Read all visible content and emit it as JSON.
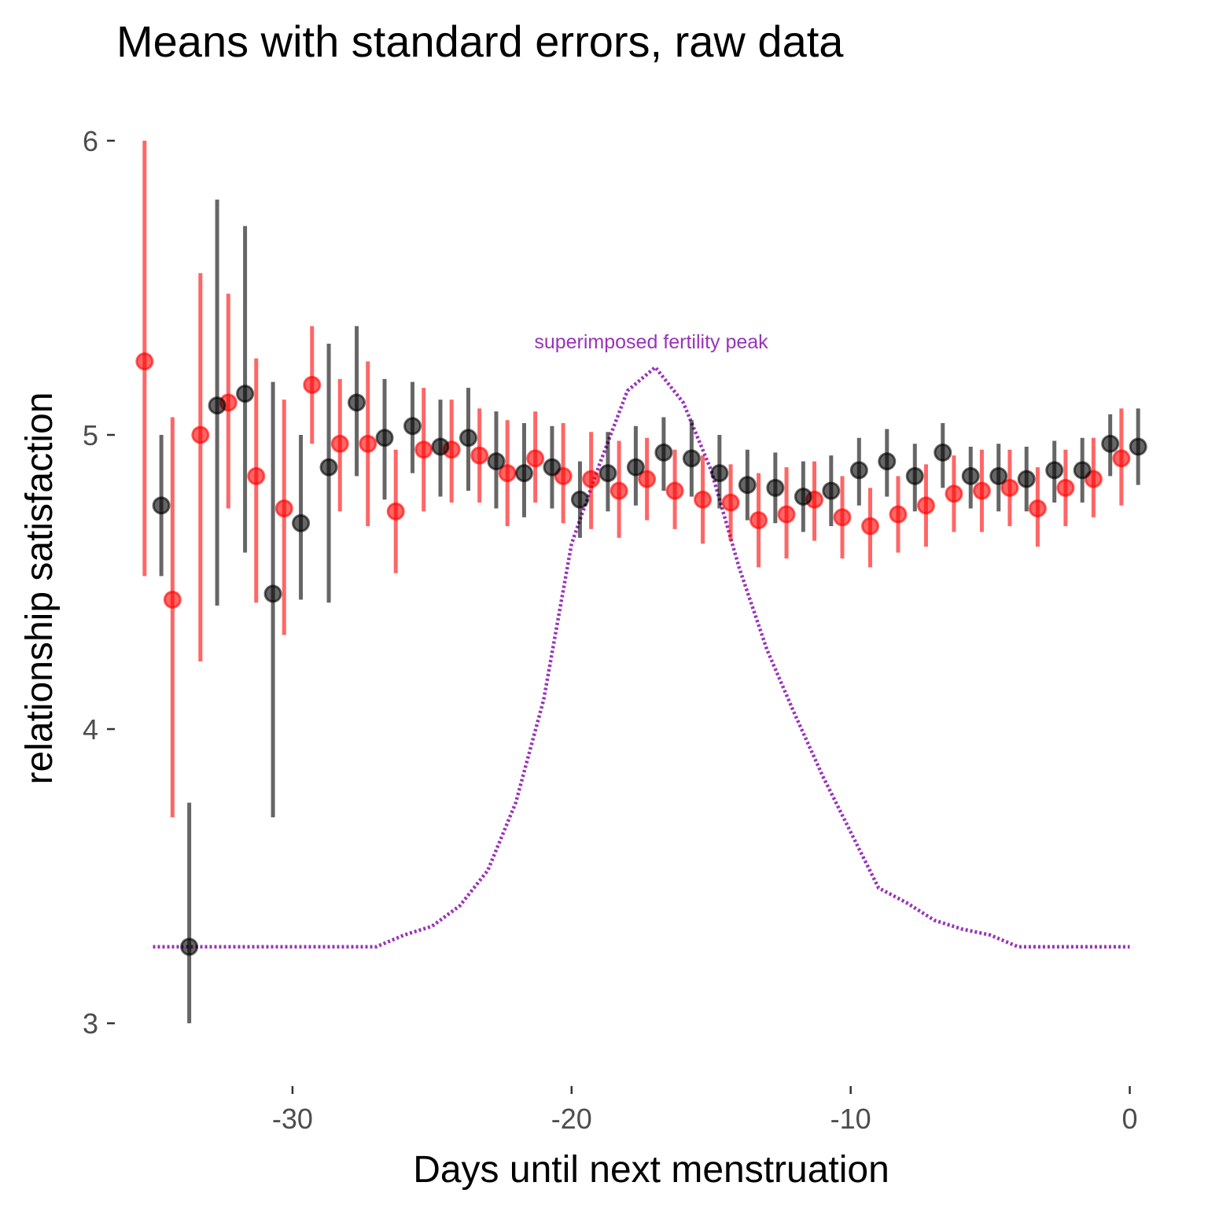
{
  "chart_data": {
    "type": "scatter",
    "title": "Means with standard errors, raw data",
    "xlabel": "Days until next menstruation",
    "ylabel": "relationship satisfaction",
    "xlim": [
      -36,
      1
    ],
    "ylim": [
      2.88,
      6.08
    ],
    "x_ticks": [
      -30,
      -20,
      -10,
      0
    ],
    "x_tick_labels": [
      "-30",
      "-20",
      "-10",
      "0"
    ],
    "y_ticks": [
      3,
      4,
      5,
      6
    ],
    "y_tick_labels": [
      "3",
      "4",
      "5",
      "6"
    ],
    "grid": false,
    "legend": "none",
    "series": [
      {
        "color": "#ff0000",
        "x_offset": -0.3,
        "points": [
          {
            "x": -35,
            "y": 5.25,
            "lo": 4.52,
            "hi": 6.0
          },
          {
            "x": -34,
            "y": 4.44,
            "lo": 3.7,
            "hi": 5.06
          },
          {
            "x": -33,
            "y": 5.0,
            "lo": 4.23,
            "hi": 5.55
          },
          {
            "x": -32,
            "y": 5.11,
            "lo": 4.75,
            "hi": 5.48
          },
          {
            "x": -31,
            "y": 4.86,
            "lo": 4.43,
            "hi": 5.26
          },
          {
            "x": -30,
            "y": 4.75,
            "lo": 4.32,
            "hi": 5.12
          },
          {
            "x": -29,
            "y": 5.17,
            "lo": 4.97,
            "hi": 5.37
          },
          {
            "x": -28,
            "y": 4.97,
            "lo": 4.74,
            "hi": 5.19
          },
          {
            "x": -27,
            "y": 4.97,
            "lo": 4.69,
            "hi": 5.25
          },
          {
            "x": -26,
            "y": 4.74,
            "lo": 4.53,
            "hi": 4.95
          },
          {
            "x": -25,
            "y": 4.95,
            "lo": 4.74,
            "hi": 5.16
          },
          {
            "x": -24,
            "y": 4.95,
            "lo": 4.77,
            "hi": 5.12
          },
          {
            "x": -23,
            "y": 4.93,
            "lo": 4.77,
            "hi": 5.09
          },
          {
            "x": -22,
            "y": 4.87,
            "lo": 4.69,
            "hi": 5.05
          },
          {
            "x": -21,
            "y": 4.92,
            "lo": 4.77,
            "hi": 5.08
          },
          {
            "x": -20,
            "y": 4.86,
            "lo": 4.7,
            "hi": 5.04
          },
          {
            "x": -19,
            "y": 4.85,
            "lo": 4.68,
            "hi": 5.01
          },
          {
            "x": -18,
            "y": 4.81,
            "lo": 4.65,
            "hi": 4.98
          },
          {
            "x": -17,
            "y": 4.85,
            "lo": 4.71,
            "hi": 4.99
          },
          {
            "x": -16,
            "y": 4.81,
            "lo": 4.68,
            "hi": 4.95
          },
          {
            "x": -15,
            "y": 4.78,
            "lo": 4.63,
            "hi": 4.93
          },
          {
            "x": -14,
            "y": 4.77,
            "lo": 4.64,
            "hi": 4.9
          },
          {
            "x": -13,
            "y": 4.71,
            "lo": 4.55,
            "hi": 4.87
          },
          {
            "x": -12,
            "y": 4.73,
            "lo": 4.58,
            "hi": 4.89
          },
          {
            "x": -11,
            "y": 4.78,
            "lo": 4.64,
            "hi": 4.91
          },
          {
            "x": -10,
            "y": 4.72,
            "lo": 4.58,
            "hi": 4.86
          },
          {
            "x": -9,
            "y": 4.69,
            "lo": 4.55,
            "hi": 4.82
          },
          {
            "x": -8,
            "y": 4.73,
            "lo": 4.6,
            "hi": 4.86
          },
          {
            "x": -7,
            "y": 4.76,
            "lo": 4.62,
            "hi": 4.9
          },
          {
            "x": -6,
            "y": 4.8,
            "lo": 4.67,
            "hi": 4.93
          },
          {
            "x": -5,
            "y": 4.81,
            "lo": 4.67,
            "hi": 4.95
          },
          {
            "x": -4,
            "y": 4.82,
            "lo": 4.69,
            "hi": 4.95
          },
          {
            "x": -3,
            "y": 4.75,
            "lo": 4.62,
            "hi": 4.89
          },
          {
            "x": -2,
            "y": 4.82,
            "lo": 4.69,
            "hi": 4.95
          },
          {
            "x": -1,
            "y": 4.85,
            "lo": 4.72,
            "hi": 4.99
          },
          {
            "x": 0,
            "y": 4.92,
            "lo": 4.76,
            "hi": 5.09
          }
        ]
      },
      {
        "color": "#000000",
        "x_offset": 0.3,
        "points": [
          {
            "x": -35,
            "y": 4.76,
            "lo": 4.52,
            "hi": 5.0
          },
          {
            "x": -34,
            "y": 3.26,
            "lo": 3.0,
            "hi": 3.75
          },
          {
            "x": -33,
            "y": 5.1,
            "lo": 4.42,
            "hi": 5.8
          },
          {
            "x": -32,
            "y": 5.14,
            "lo": 4.6,
            "hi": 5.71
          },
          {
            "x": -31,
            "y": 4.46,
            "lo": 3.7,
            "hi": 5.18
          },
          {
            "x": -30,
            "y": 4.7,
            "lo": 4.44,
            "hi": 5.0
          },
          {
            "x": -29,
            "y": 4.89,
            "lo": 4.43,
            "hi": 5.31
          },
          {
            "x": -28,
            "y": 5.11,
            "lo": 4.86,
            "hi": 5.37
          },
          {
            "x": -27,
            "y": 4.99,
            "lo": 4.78,
            "hi": 5.19
          },
          {
            "x": -26,
            "y": 5.03,
            "lo": 4.87,
            "hi": 5.18
          },
          {
            "x": -25,
            "y": 4.96,
            "lo": 4.79,
            "hi": 5.12
          },
          {
            "x": -24,
            "y": 4.99,
            "lo": 4.81,
            "hi": 5.16
          },
          {
            "x": -23,
            "y": 4.91,
            "lo": 4.75,
            "hi": 5.08
          },
          {
            "x": -22,
            "y": 4.87,
            "lo": 4.72,
            "hi": 5.04
          },
          {
            "x": -21,
            "y": 4.89,
            "lo": 4.75,
            "hi": 5.03
          },
          {
            "x": -20,
            "y": 4.78,
            "lo": 4.65,
            "hi": 4.91
          },
          {
            "x": -19,
            "y": 4.87,
            "lo": 4.74,
            "hi": 5.01
          },
          {
            "x": -18,
            "y": 4.89,
            "lo": 4.76,
            "hi": 5.03
          },
          {
            "x": -17,
            "y": 4.94,
            "lo": 4.81,
            "hi": 5.06
          },
          {
            "x": -16,
            "y": 4.92,
            "lo": 4.79,
            "hi": 5.05
          },
          {
            "x": -15,
            "y": 4.87,
            "lo": 4.75,
            "hi": 5.0
          },
          {
            "x": -14,
            "y": 4.83,
            "lo": 4.71,
            "hi": 4.95
          },
          {
            "x": -13,
            "y": 4.82,
            "lo": 4.7,
            "hi": 4.94
          },
          {
            "x": -12,
            "y": 4.79,
            "lo": 4.67,
            "hi": 4.91
          },
          {
            "x": -11,
            "y": 4.81,
            "lo": 4.69,
            "hi": 4.93
          },
          {
            "x": -10,
            "y": 4.88,
            "lo": 4.76,
            "hi": 4.99
          },
          {
            "x": -9,
            "y": 4.91,
            "lo": 4.79,
            "hi": 5.02
          },
          {
            "x": -8,
            "y": 4.86,
            "lo": 4.74,
            "hi": 4.97
          },
          {
            "x": -7,
            "y": 4.94,
            "lo": 4.82,
            "hi": 5.04
          },
          {
            "x": -6,
            "y": 4.86,
            "lo": 4.75,
            "hi": 4.96
          },
          {
            "x": -5,
            "y": 4.86,
            "lo": 4.74,
            "hi": 4.97
          },
          {
            "x": -4,
            "y": 4.85,
            "lo": 4.74,
            "hi": 4.96
          },
          {
            "x": -3,
            "y": 4.88,
            "lo": 4.77,
            "hi": 4.98
          },
          {
            "x": -2,
            "y": 4.88,
            "lo": 4.77,
            "hi": 4.99
          },
          {
            "x": -1,
            "y": 4.97,
            "lo": 4.86,
            "hi": 5.07
          },
          {
            "x": 0,
            "y": 4.96,
            "lo": 4.83,
            "hi": 5.09
          }
        ]
      }
    ],
    "fertility_curve": {
      "color": "#9933bb",
      "style": "dotted",
      "label": "superimposed fertility peak",
      "points": [
        {
          "x": -35,
          "y": 3.26
        },
        {
          "x": -34,
          "y": 3.26
        },
        {
          "x": -33,
          "y": 3.26
        },
        {
          "x": -32,
          "y": 3.26
        },
        {
          "x": -31,
          "y": 3.26
        },
        {
          "x": -30,
          "y": 3.26
        },
        {
          "x": -29,
          "y": 3.26
        },
        {
          "x": -28,
          "y": 3.26
        },
        {
          "x": -27,
          "y": 3.26
        },
        {
          "x": -26,
          "y": 3.3
        },
        {
          "x": -25,
          "y": 3.33
        },
        {
          "x": -24,
          "y": 3.4
        },
        {
          "x": -23,
          "y": 3.52
        },
        {
          "x": -22,
          "y": 3.75
        },
        {
          "x": -21,
          "y": 4.1
        },
        {
          "x": -20,
          "y": 4.63
        },
        {
          "x": -19,
          "y": 4.9
        },
        {
          "x": -18,
          "y": 5.15
        },
        {
          "x": -17,
          "y": 5.23
        },
        {
          "x": -16,
          "y": 5.11
        },
        {
          "x": -15,
          "y": 4.88
        },
        {
          "x": -14,
          "y": 4.55
        },
        {
          "x": -13,
          "y": 4.27
        },
        {
          "x": -12,
          "y": 4.05
        },
        {
          "x": -11,
          "y": 3.84
        },
        {
          "x": -10,
          "y": 3.65
        },
        {
          "x": -9,
          "y": 3.46
        },
        {
          "x": -8,
          "y": 3.41
        },
        {
          "x": -7,
          "y": 3.35
        },
        {
          "x": -6,
          "y": 3.32
        },
        {
          "x": -5,
          "y": 3.3
        },
        {
          "x": -4,
          "y": 3.26
        },
        {
          "x": -3,
          "y": 3.26
        },
        {
          "x": -2,
          "y": 3.26
        },
        {
          "x": -1,
          "y": 3.26
        },
        {
          "x": 0,
          "y": 3.26
        }
      ]
    }
  }
}
